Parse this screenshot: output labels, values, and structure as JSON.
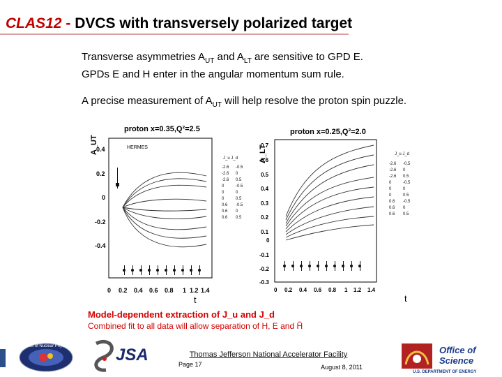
{
  "slide": {
    "title_brand": "CLAS12",
    "title_sep": " - ",
    "title_rest": "DVCS with transversely polarized target"
  },
  "bullets": {
    "line1_a": "Transverse asymmetries A",
    "line1_sub1": "UT",
    "line1_b": " and A",
    "line1_sub2": "LT",
    "line1_c": " are sensitive to GPD E.",
    "line2": "GPDs E and H enter in the angular momentum sum rule.",
    "line3_a": "A precise measurement of A",
    "line3_sub": "UT",
    "line3_b": " will help resolve the proton spin puzzle."
  },
  "figure": {
    "left_plot": {
      "title": "proton x=0.35,Q²=2.5",
      "ylabel": "A_UT",
      "legend_marker": "HERMES",
      "yticks": [
        "0.4",
        "0.2",
        "0",
        "-0.2",
        "-0.4"
      ],
      "xticks": [
        "0",
        "0.2",
        "0.4",
        "0.6",
        "0.8",
        "1",
        "1.2",
        "1.4"
      ],
      "xlabel": "t"
    },
    "right_plot": {
      "title": "proton x=0.25,Q²=2.0",
      "ylabel": "A_LT",
      "yticks": [
        "0.7",
        "0.6",
        "0.5",
        "0.4",
        "0.3",
        "0.2",
        "0.1",
        "0",
        "-0.1",
        "-0.2",
        "-0.3"
      ],
      "xticks": [
        "0",
        "0.2",
        "0.4",
        "0.6",
        "0.8",
        "1",
        "1.2",
        "1.4"
      ],
      "xlabel": "t"
    },
    "legend_header": "J_u  J_d",
    "legend_rows": [
      {
        "ju": "-2.6",
        "jd": "-0.5"
      },
      {
        "ju": "-2.6",
        "jd": "0"
      },
      {
        "ju": "-2.6",
        "jd": "0.5"
      },
      {
        "ju": "0",
        "jd": "-0.5"
      },
      {
        "ju": "0",
        "jd": "0"
      },
      {
        "ju": "0",
        "jd": "0.5"
      },
      {
        "ju": "0.6",
        "jd": "-0.5"
      },
      {
        "ju": "0.6",
        "jd": "0"
      },
      {
        "ju": "0.6",
        "jd": "0.5"
      }
    ],
    "caption1": "Model-dependent extraction of J_u and J_d",
    "caption2": "Combined fit to all data will allow separation of H, E and H̃",
    "caption_color": "#d40000"
  },
  "footer": {
    "lab": "Thomas Jefferson National Accelerator Facility",
    "page": "Page 17",
    "date": "August 8, 2011",
    "logo_onp_text": "Office of Nuclear Physics",
    "logo_jsa_text": "JSA",
    "logo_sci_line1": "Office of",
    "logo_sci_line2": "Science",
    "logo_sci_line3": "U.S. DEPARTMENT OF ENERGY"
  }
}
